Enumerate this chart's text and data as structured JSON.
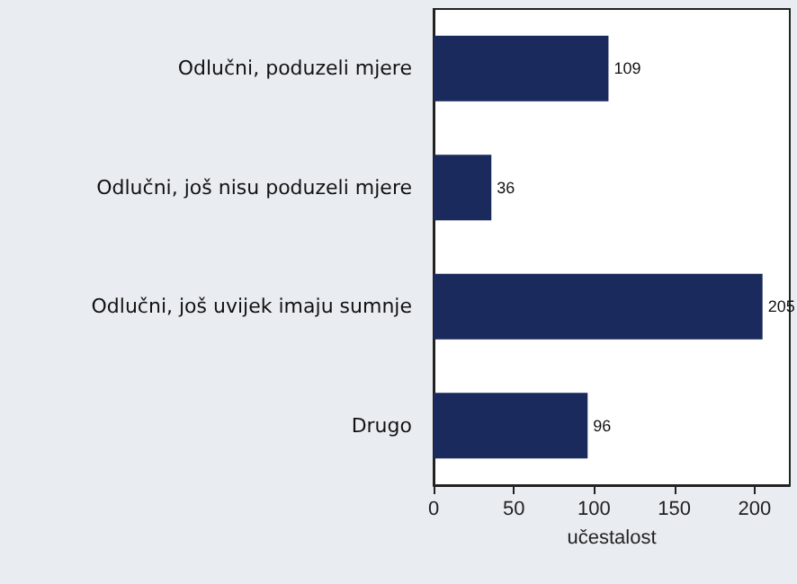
{
  "chart_data": {
    "type": "bar",
    "orientation": "horizontal",
    "categories": [
      "Odlučni, poduzeli mjere",
      "Odlučni, još nisu poduzeli mjere",
      "Odlučni, još uvijek imaju sumnje",
      "Drugo"
    ],
    "values": [
      109,
      36,
      205,
      96
    ],
    "color": "#1b2a5c",
    "xlim": [
      0,
      222
    ],
    "xticks": [
      0,
      50,
      100,
      150,
      200
    ],
    "xlabel": "učestalost",
    "data_labels": true,
    "grid": false
  }
}
